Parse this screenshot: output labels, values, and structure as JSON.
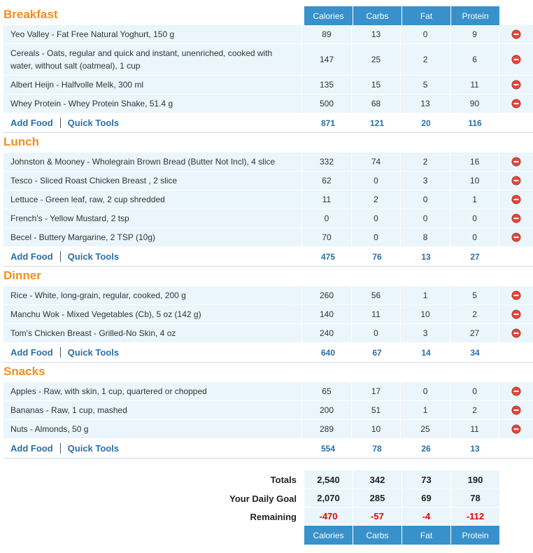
{
  "columns": [
    "Calories",
    "Carbs",
    "Fat",
    "Protein"
  ],
  "actions": {
    "add_food": "Add Food",
    "quick_tools": "Quick Tools"
  },
  "meals": [
    {
      "name": "Breakfast",
      "items": [
        {
          "food": "Yeo Valley - Fat Free Natural Yoghurt, 150 g",
          "values": [
            89,
            13,
            0,
            9
          ]
        },
        {
          "food": "Cereals - Oats, regular and quick and instant, unenriched, cooked with water, without salt (oatmeal), 1 cup",
          "values": [
            147,
            25,
            2,
            6
          ]
        },
        {
          "food": "Albert Heijn - Halfvolle Melk, 300 ml",
          "values": [
            135,
            15,
            5,
            11
          ]
        },
        {
          "food": "Whey Protein - Whey Protein Shake, 51.4 g",
          "values": [
            500,
            68,
            13,
            90
          ]
        }
      ],
      "totals": [
        871,
        121,
        20,
        116
      ]
    },
    {
      "name": "Lunch",
      "items": [
        {
          "food": "Johnston & Mooney - Wholegrain Brown Bread (Butter Not Incl), 4 slice",
          "values": [
            332,
            74,
            2,
            16
          ]
        },
        {
          "food": "Tesco - Sliced Roast Chicken Breast , 2 slice",
          "values": [
            62,
            0,
            3,
            10
          ]
        },
        {
          "food": "Lettuce - Green leaf, raw, 2 cup shredded",
          "values": [
            11,
            2,
            0,
            1
          ]
        },
        {
          "food": "French's - Yellow Mustard, 2 tsp",
          "values": [
            0,
            0,
            0,
            0
          ]
        },
        {
          "food": "Becel - Buttery Margarine, 2 TSP (10g)",
          "values": [
            70,
            0,
            8,
            0
          ]
        }
      ],
      "totals": [
        475,
        76,
        13,
        27
      ]
    },
    {
      "name": "Dinner",
      "items": [
        {
          "food": "Rice - White, long-grain, regular, cooked, 200 g",
          "values": [
            260,
            56,
            1,
            5
          ]
        },
        {
          "food": "Manchu Wok - Mixed Vegetables (Cb), 5 oz (142 g)",
          "values": [
            140,
            11,
            10,
            2
          ]
        },
        {
          "food": "Tom's Chicken Breast - Grilled-No Skin, 4 oz",
          "values": [
            240,
            0,
            3,
            27
          ]
        }
      ],
      "totals": [
        640,
        67,
        14,
        34
      ]
    },
    {
      "name": "Snacks",
      "items": [
        {
          "food": "Apples - Raw, with skin, 1 cup, quartered or chopped",
          "values": [
            65,
            17,
            0,
            0
          ]
        },
        {
          "food": "Bananas - Raw, 1 cup, mashed",
          "values": [
            200,
            51,
            1,
            2
          ]
        },
        {
          "food": "Nuts - Almonds, 50 g",
          "values": [
            289,
            10,
            25,
            11
          ]
        }
      ],
      "totals": [
        554,
        78,
        26,
        13
      ]
    }
  ],
  "summary": [
    {
      "label": "Totals",
      "values": [
        "2,540",
        342,
        73,
        190
      ]
    },
    {
      "label": "Your Daily Goal",
      "values": [
        "2,070",
        285,
        69,
        78
      ]
    },
    {
      "label": "Remaining",
      "values": [
        -470,
        -57,
        -4,
        -112
      ]
    }
  ]
}
